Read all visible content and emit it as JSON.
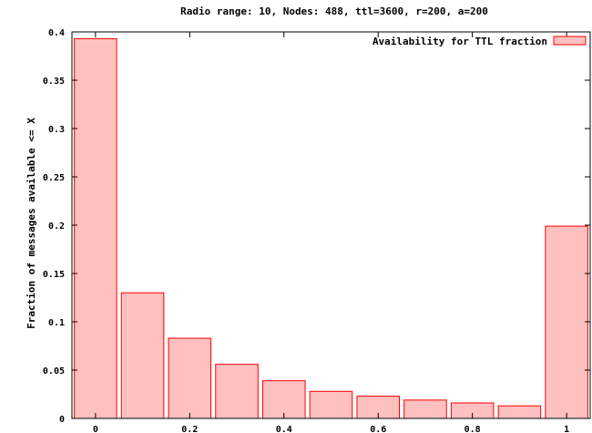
{
  "chart_data": {
    "type": "bar",
    "title": "Radio range: 10, Nodes: 488, ttl=3600, r=200, a=200",
    "xlabel": "",
    "ylabel": "Fraction of messages available <= X",
    "x": [
      0,
      0.1,
      0.2,
      0.3,
      0.4,
      0.5,
      0.6,
      0.7,
      0.8,
      0.9,
      1.0
    ],
    "xlim": [
      -0.05,
      1.05
    ],
    "xticks": [
      0,
      0.2,
      0.4,
      0.6,
      0.8,
      1
    ],
    "xtick_labels": [
      "0",
      "0.2",
      "0.4",
      "0.6",
      "0.8",
      "1"
    ],
    "ylim": [
      0,
      0.4
    ],
    "yticks": [
      0,
      0.05,
      0.1,
      0.15,
      0.2,
      0.25,
      0.3,
      0.35,
      0.4
    ],
    "ytick_labels": [
      "0",
      "0.05",
      "0.1",
      "0.15",
      "0.2",
      "0.25",
      "0.3",
      "0.35",
      "0.4"
    ],
    "grid": false,
    "legend_position": "top-right",
    "series": [
      {
        "name": "Availability for TTL fraction",
        "values": [
          0.393,
          0.13,
          0.083,
          0.056,
          0.039,
          0.028,
          0.023,
          0.019,
          0.016,
          0.013,
          0.199
        ],
        "fill": "#ffc0c0",
        "stroke": "#ff0000"
      }
    ]
  }
}
